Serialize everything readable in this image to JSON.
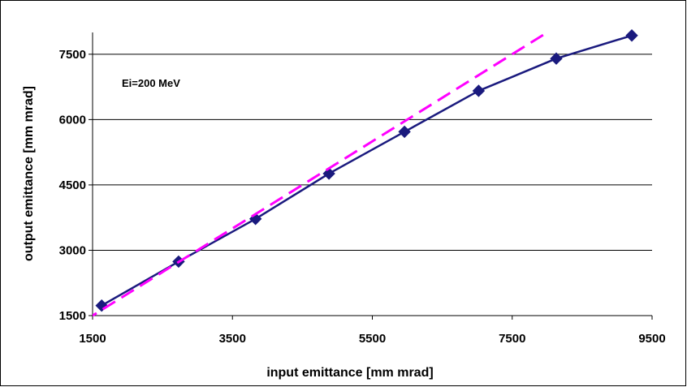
{
  "chart_data": {
    "type": "line",
    "title": "",
    "xlabel": "input emittance [mm mrad]",
    "ylabel": "output emittance [mm mrad]",
    "xlim": [
      1500,
      9500
    ],
    "ylim": [
      1500,
      8000
    ],
    "x_ticks": [
      1500,
      3500,
      5500,
      7500,
      9500
    ],
    "y_ticks": [
      1500,
      3000,
      4500,
      6000,
      7500
    ],
    "grid": "horizontal",
    "annotation": "Ei=200 MeV",
    "series": [
      {
        "color": "#1a1a7e",
        "style": "solid",
        "marker": "diamond",
        "x": [
          1630,
          2730,
          3830,
          4880,
          5960,
          7020,
          8130,
          9210
        ],
        "y": [
          1730,
          2740,
          3720,
          4760,
          5720,
          6660,
          7400,
          7930
        ]
      },
      {
        "color": "#ff00ff",
        "style": "dashed",
        "marker": "none",
        "x": [
          1380,
          8000
        ],
        "y": [
          1380,
          8000
        ]
      }
    ]
  }
}
